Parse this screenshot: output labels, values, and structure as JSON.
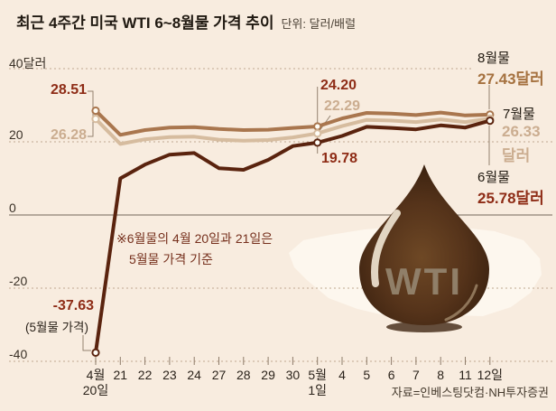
{
  "title": {
    "main": "최근 4주간 미국 WTI 6~8월물 가격 추이",
    "unit": "단위: 달러/배럴"
  },
  "source": "자료=인베스팅닷컴·NH투자증권",
  "note": {
    "line1": "※6월물의 4월 20일과 21일은",
    "line2": "5월물 가격 기준"
  },
  "y_axis": {
    "labels": [
      "40달러",
      "20",
      "0",
      "-20",
      "-40"
    ],
    "values": [
      40,
      20,
      0,
      -20,
      -40
    ]
  },
  "x_axis": {
    "ticks": [
      "4월|20일",
      "21",
      "22",
      "23",
      "24",
      "27",
      "28",
      "29",
      "30",
      "5월|1일",
      "4",
      "5",
      "6",
      "7",
      "8",
      "11",
      "12일"
    ]
  },
  "colors": {
    "background": "#f8ecdf",
    "aug_line": "#a9764e",
    "jul_line": "#d6bc9f",
    "jun_line": "#5a230e",
    "maroon_text": "#8e2c16",
    "tan_text": "#cbad90",
    "brown_text": "#a5713f",
    "grid": "#bfa990",
    "zero_line": "#75695b"
  },
  "callouts": {
    "aug_start": "28.51",
    "jul_start": "26.28",
    "aug_mid": "24.20",
    "jul_mid": "22.29",
    "jun_mid": "19.78",
    "jun_start": "-37.63",
    "jun_start_sub": "(5월물 가격)",
    "aug_name": "8월물",
    "aug_end": "27.43달러",
    "jul_name": "7월물",
    "jul_end_value": "26.33",
    "jul_end_unit": "달러",
    "jun_name": "6월물",
    "jun_end": "25.78달러",
    "drop_text": "WTI"
  },
  "chart_data": {
    "type": "line",
    "title": "최근 4주간 미국 WTI 6~8월물 가격 추이",
    "ylabel": "달러/배럴",
    "ylim": [
      -45,
      42
    ],
    "grid": "dotted horizontal at 40, 20, 0, -20, -40",
    "x": [
      "4월 20일",
      "21",
      "22",
      "23",
      "24",
      "27",
      "28",
      "29",
      "30",
      "5월 1일",
      "4",
      "5",
      "6",
      "7",
      "8",
      "11",
      "12일"
    ],
    "series": [
      {
        "key": "aug",
        "name": "8월물",
        "color": "#a9764e",
        "markers": [
          0,
          9,
          16
        ],
        "values": [
          28.51,
          21.9,
          23.2,
          23.9,
          24.0,
          23.5,
          23.2,
          23.3,
          23.8,
          24.2,
          26.4,
          27.9,
          27.7,
          27.3,
          28.0,
          27.2,
          27.43
        ]
      },
      {
        "key": "jul",
        "name": "7월물",
        "color": "#d6bc9f",
        "markers": [
          0,
          9,
          16
        ],
        "values": [
          26.28,
          19.4,
          20.7,
          21.3,
          21.4,
          20.6,
          20.3,
          20.5,
          21.2,
          22.29,
          24.3,
          26.0,
          25.8,
          25.4,
          26.1,
          25.4,
          26.33
        ]
      },
      {
        "key": "jun",
        "name": "6월물",
        "color": "#5a230e",
        "markers": [
          0,
          9,
          16
        ],
        "values": [
          -37.63,
          10.01,
          13.78,
          16.5,
          16.94,
          12.78,
          12.34,
          15.06,
          18.84,
          19.78,
          21.6,
          24.1,
          23.8,
          23.4,
          24.5,
          23.9,
          25.78
        ]
      }
    ],
    "annotation": "6월물의 4월 20일과 21일은 5월물 가격 기준"
  }
}
